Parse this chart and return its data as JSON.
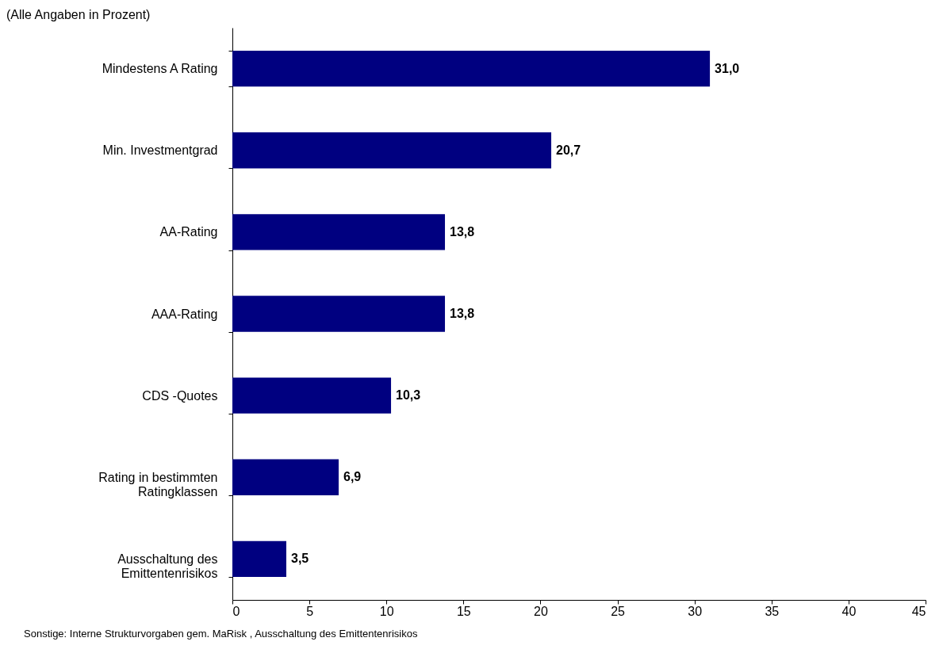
{
  "chart_data": {
    "type": "bar",
    "orientation": "horizontal",
    "title": "(Alle Angaben in Prozent)",
    "categories": [
      "Mindestens A Rating",
      "Min. Investmentgrad",
      "AA-Rating",
      "AAA-Rating",
      "CDS -Quotes",
      "Rating in bestimmten Ratingklassen",
      "Ausschaltung des Emittentenrisikos"
    ],
    "values": [
      31.0,
      20.7,
      13.8,
      13.8,
      10.3,
      6.9,
      3.5
    ],
    "value_labels": [
      "31,0",
      "20,7",
      "13,8",
      "13,8",
      "10,3",
      "6,9",
      "3,5"
    ],
    "color": "#000080",
    "xlim": [
      0,
      45
    ],
    "xticks": [
      0,
      5,
      10,
      15,
      20,
      25,
      30,
      35,
      40,
      45
    ],
    "grid": false,
    "legend": false,
    "annotations": [
      "Sonstige: Interne Strukturvorgaben gem. MaRisk , Ausschaltung des Emittentenrisikos"
    ]
  }
}
